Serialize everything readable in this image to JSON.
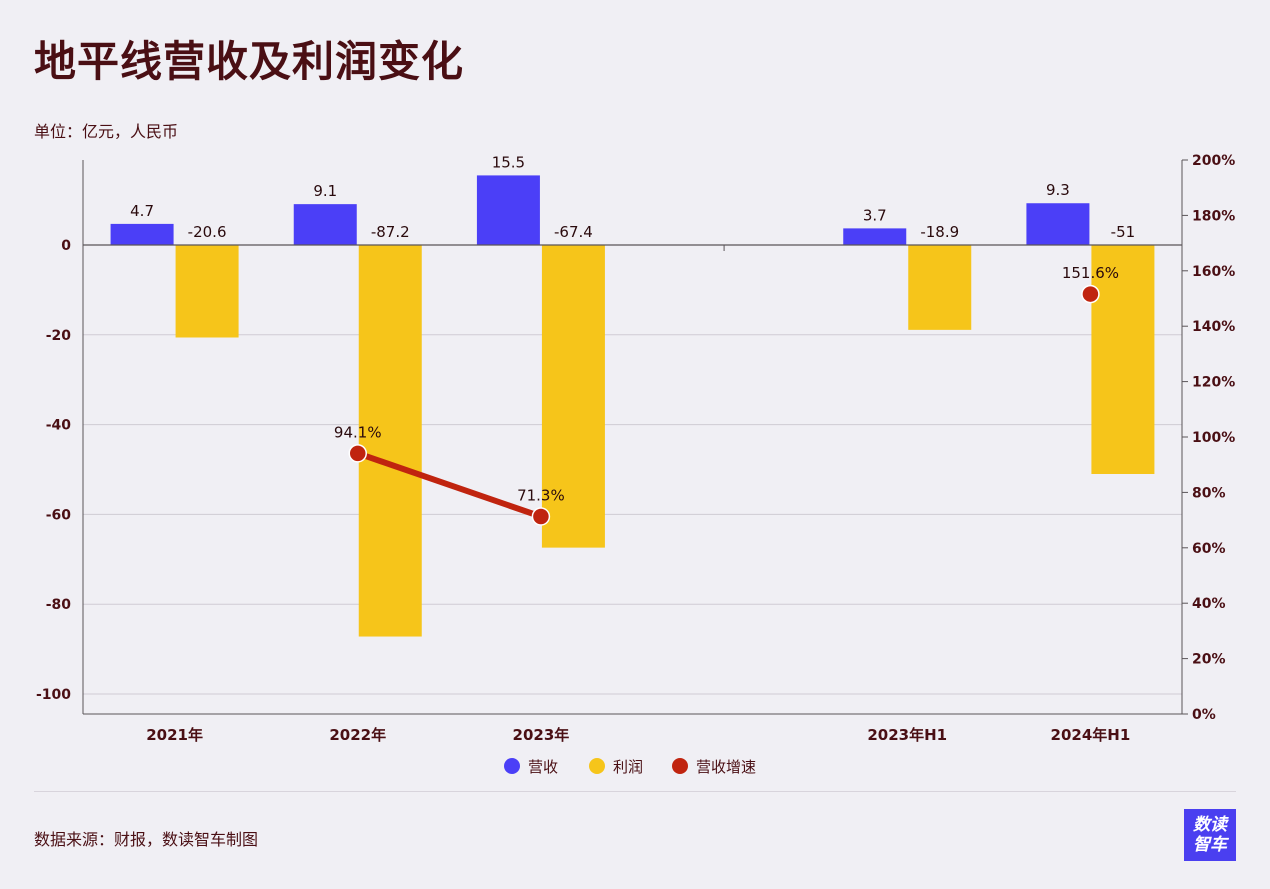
{
  "header": {
    "title": "地平线营收及利润变化",
    "unit": "单位：亿元，人民币"
  },
  "footer": {
    "source": "数据来源：财报，数读智车制图",
    "logo_line1": "数读",
    "logo_line2": "智车"
  },
  "colors": {
    "revenue": "#4b3ff7",
    "profit": "#f6c51a",
    "growth": "#c0240f",
    "text": "#4a0f14"
  },
  "chart_data": {
    "type": "bar",
    "categories": [
      "2021年",
      "2022年",
      "2023年",
      "",
      "2023年H1",
      "2024年H1"
    ],
    "series": [
      {
        "name": "营收",
        "type": "bar",
        "axis": "left",
        "values": [
          4.7,
          9.1,
          15.5,
          null,
          3.7,
          9.3
        ],
        "labels": [
          "4.7",
          "9.1",
          "15.5",
          null,
          "3.7",
          "9.3"
        ]
      },
      {
        "name": "利润",
        "type": "bar",
        "axis": "left",
        "values": [
          -20.6,
          -87.2,
          -67.4,
          null,
          -18.9,
          -51
        ],
        "labels": [
          "-20.6",
          "-87.2",
          "-67.4",
          null,
          "-18.9",
          "-51"
        ]
      },
      {
        "name": "营收增速",
        "type": "line",
        "axis": "right",
        "values": [
          null,
          94.1,
          71.3,
          null,
          null,
          151.6
        ],
        "labels": [
          null,
          "94.1%",
          "71.3%",
          null,
          null,
          "151.6%"
        ]
      }
    ],
    "y_left": {
      "min": -105,
      "max": 18,
      "ticks": [
        0,
        -20,
        -40,
        -60,
        -80,
        -100
      ],
      "tick_labels": [
        "0",
        "-20",
        "-40",
        "-60",
        "-80",
        "-100"
      ]
    },
    "y_right": {
      "min": 0,
      "max": 200,
      "ticks": [
        0,
        20,
        40,
        60,
        80,
        100,
        120,
        140,
        160,
        180,
        200
      ],
      "tick_labels": [
        "0%",
        "20%",
        "40%",
        "60%",
        "80%",
        "100%",
        "120%",
        "140%",
        "160%",
        "180%",
        "200%"
      ]
    },
    "grid": true,
    "legend": "bottom-center"
  }
}
